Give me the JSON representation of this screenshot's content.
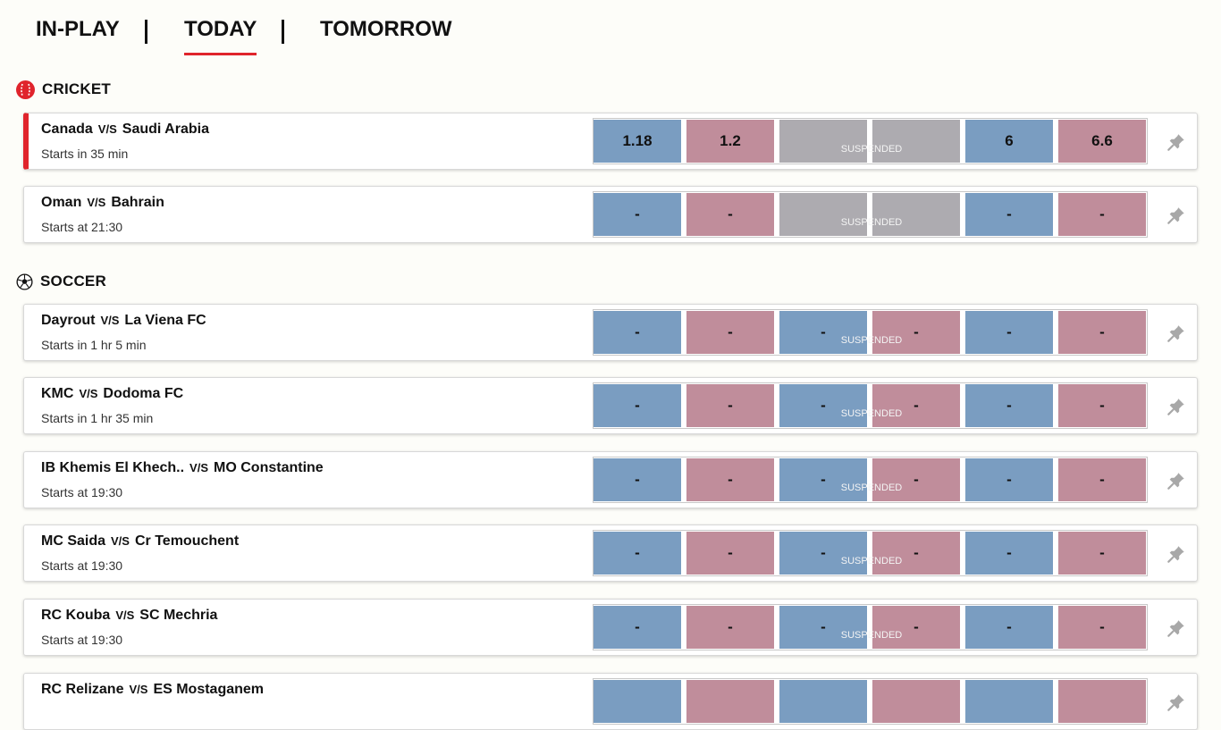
{
  "tabs": [
    {
      "label": "IN-PLAY"
    },
    {
      "label": "TODAY"
    },
    {
      "label": "TOMORROW"
    }
  ],
  "colors": {
    "accent": "#e0242c",
    "back": "#7a9dc1",
    "lay": "#c08d9b",
    "suspended": "#adabb0"
  },
  "sections": [
    {
      "sport": "CRICKET",
      "icon": "cricket-icon",
      "events": [
        {
          "home": "Canada",
          "vs": "V/S",
          "away": "Saudi Arabia",
          "start": "Starts in 35 min",
          "live": true,
          "odds": [
            "1.18",
            "1.2",
            "",
            "",
            "6",
            "6.6"
          ],
          "middle_suspended": true,
          "status": "SUSPENDED"
        },
        {
          "home": "Oman",
          "vs": "V/S",
          "away": "Bahrain",
          "start": "Starts at 21:30",
          "live": false,
          "odds": [
            "-",
            "-",
            "",
            "",
            "-",
            "-"
          ],
          "middle_suspended": true,
          "status": "SUSPENDED"
        }
      ]
    },
    {
      "sport": "SOCCER",
      "icon": "soccer-ball-icon",
      "events": [
        {
          "home": "Dayrout",
          "vs": "V/S",
          "away": "La Viena FC",
          "start": "Starts in 1 hr 5 min",
          "live": false,
          "odds": [
            "-",
            "-",
            "-",
            "-",
            "-",
            "-"
          ],
          "middle_suspended": false,
          "status": "SUSPENDED"
        },
        {
          "home": "KMC",
          "vs": "V/S",
          "away": "Dodoma FC",
          "start": "Starts in 1 hr 35 min",
          "live": false,
          "odds": [
            "-",
            "-",
            "-",
            "-",
            "-",
            "-"
          ],
          "middle_suspended": false,
          "status": "SUSPENDED"
        },
        {
          "home": "IB Khemis El Khech..",
          "vs": "V/S",
          "away": "MO Constantine",
          "start": "Starts at 19:30",
          "live": false,
          "odds": [
            "-",
            "-",
            "-",
            "-",
            "-",
            "-"
          ],
          "middle_suspended": false,
          "status": "SUSPENDED"
        },
        {
          "home": "MC Saida",
          "vs": "V/S",
          "away": "Cr Temouchent",
          "start": "Starts at 19:30",
          "live": false,
          "odds": [
            "-",
            "-",
            "-",
            "-",
            "-",
            "-"
          ],
          "middle_suspended": false,
          "status": "SUSPENDED"
        },
        {
          "home": "RC Kouba",
          "vs": "V/S",
          "away": "SC Mechria",
          "start": "Starts at 19:30",
          "live": false,
          "odds": [
            "-",
            "-",
            "-",
            "-",
            "-",
            "-"
          ],
          "middle_suspended": false,
          "status": "SUSPENDED"
        },
        {
          "home": "RC Relizane",
          "vs": "V/S",
          "away": "ES Mostaganem",
          "start": "",
          "live": false,
          "odds": [
            "",
            "",
            "",
            "",
            "",
            ""
          ],
          "middle_suspended": false,
          "status": ""
        }
      ]
    }
  ]
}
